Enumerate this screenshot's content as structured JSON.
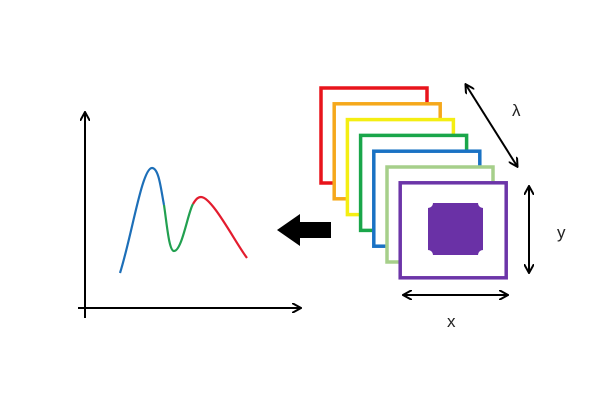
{
  "labels": {
    "lambda": "λ",
    "y": "y",
    "x": "x"
  },
  "frame_colors": [
    "#e8141b",
    "#f5a81c",
    "#f4ee12",
    "#1aa64a",
    "#1a72c4",
    "#a6cf8a",
    "#6c35a8"
  ],
  "object_color": "#6a31a6",
  "curve_colors": {
    "rising": "#1d6fb8",
    "middle": "#22a050",
    "falling": "#e31c2e"
  },
  "arrow_color": "#000000"
}
